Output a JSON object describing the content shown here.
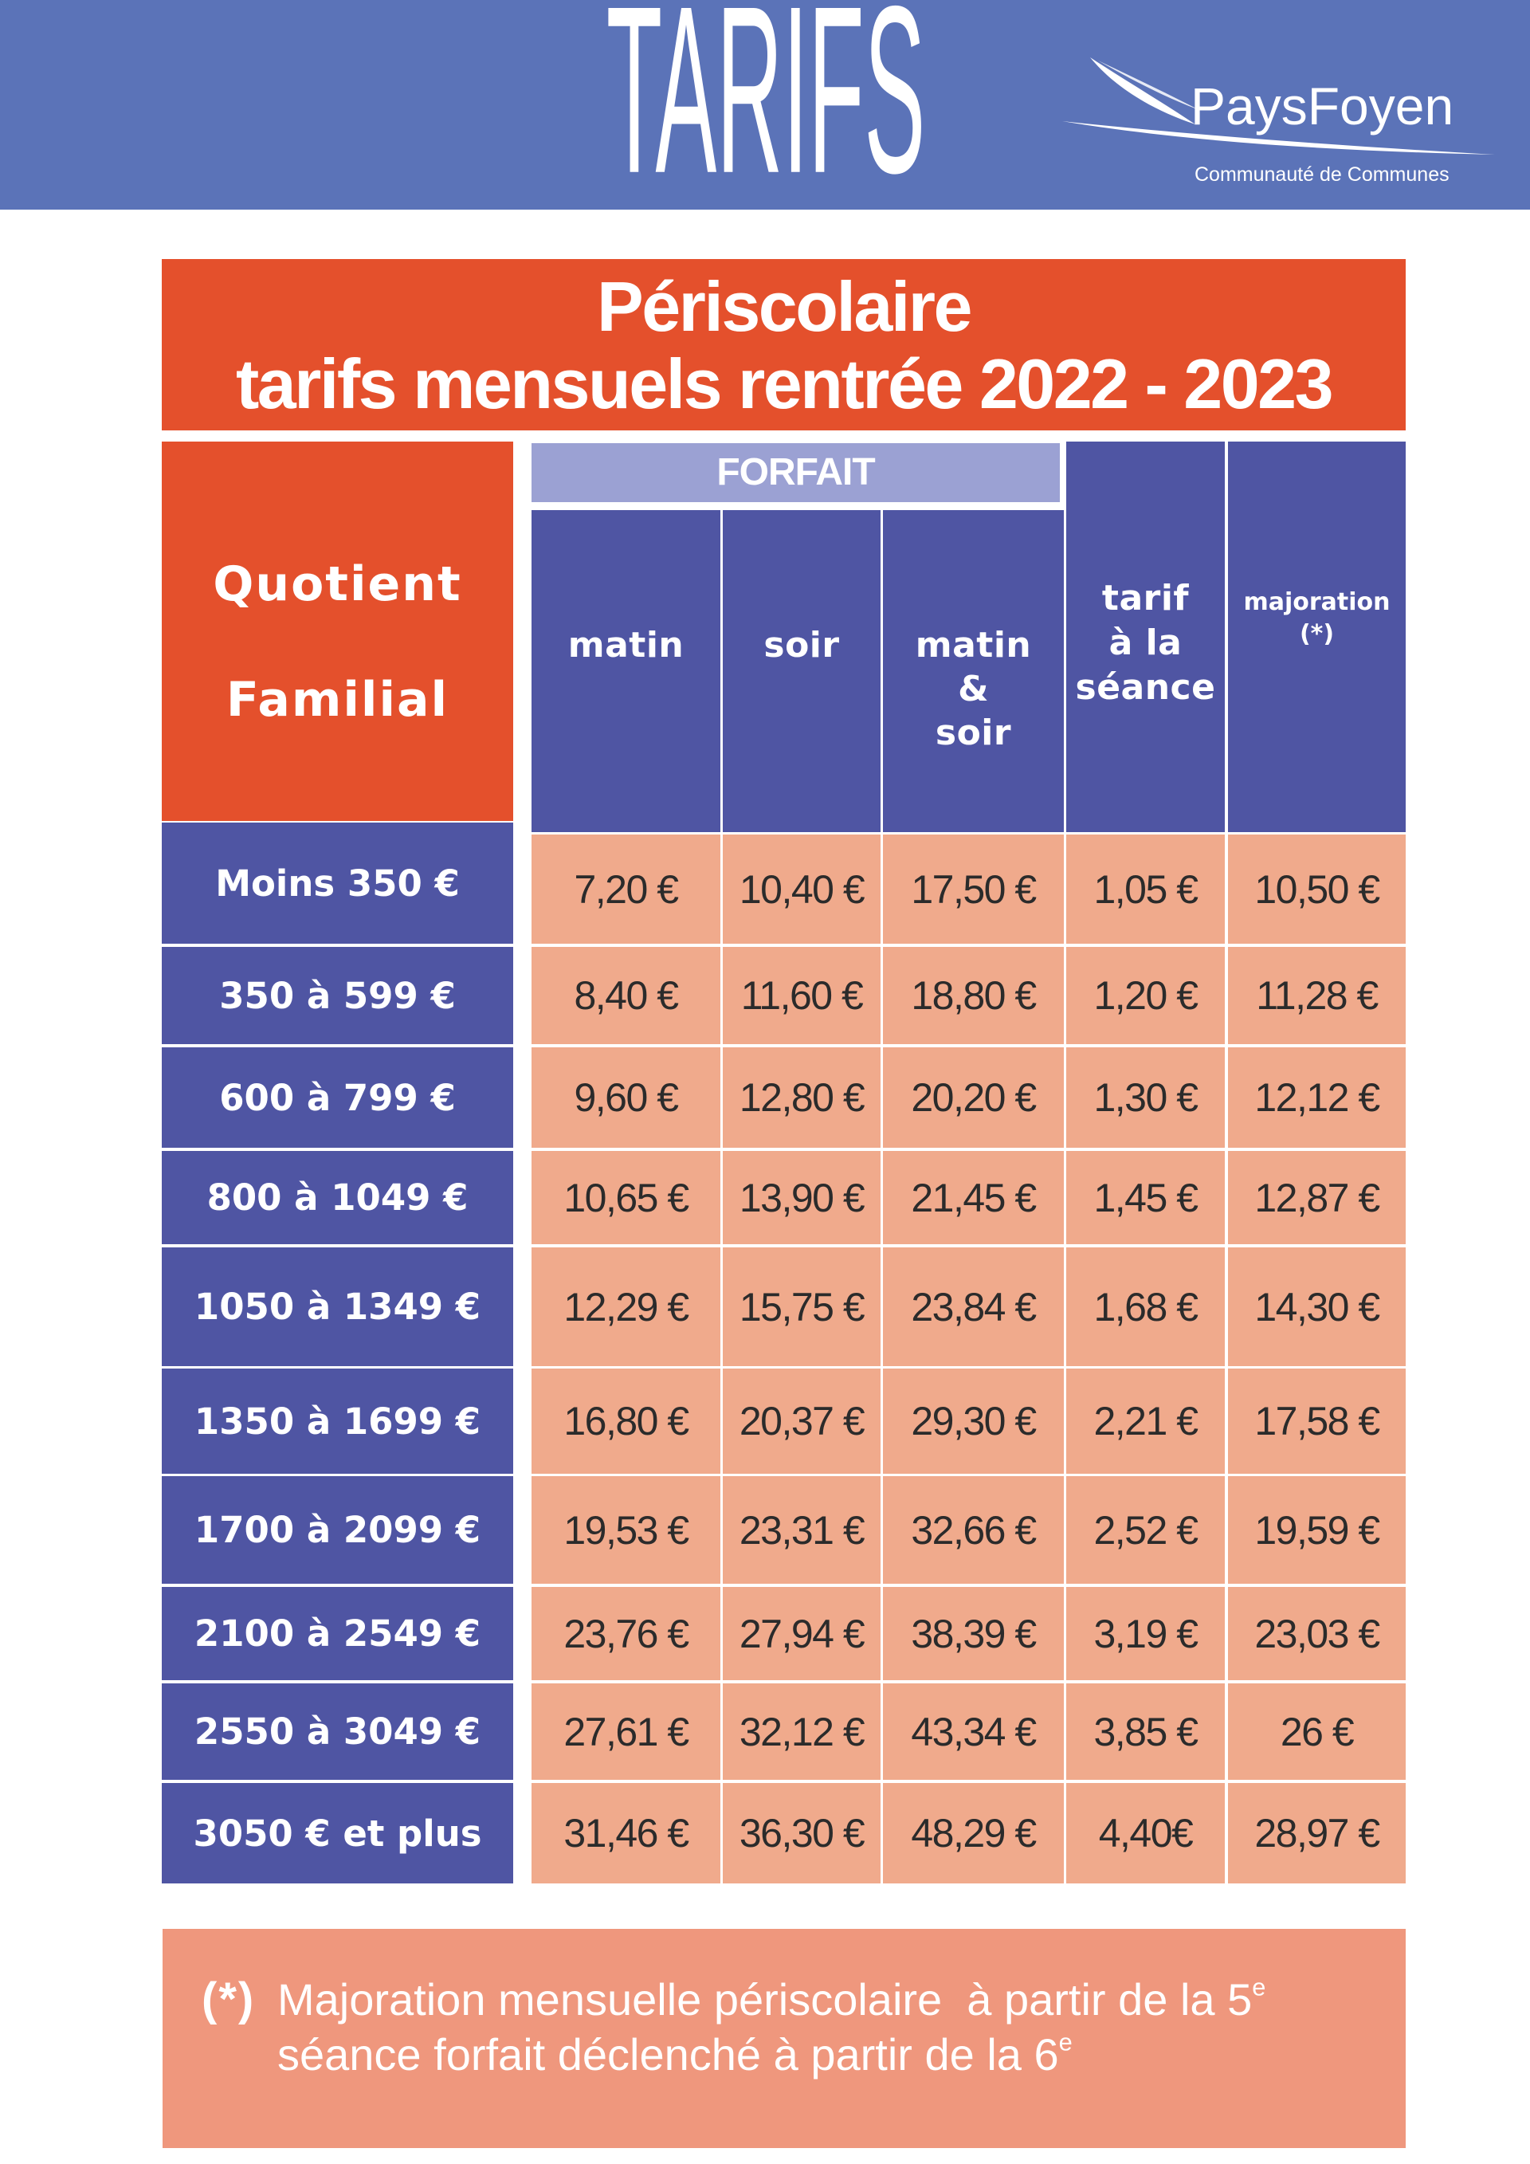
{
  "header": {
    "title": "TARIFS",
    "logo_name": "PaysFoyen",
    "logo_subtitle": "Communauté de Communes"
  },
  "banner": {
    "line1": "Périscolaire",
    "line2": "tarifs mensuels rentrée 2022 - 2023"
  },
  "table": {
    "quotient_header": [
      "Quotient",
      "Familial"
    ],
    "forfait_label": "FORFAIT",
    "col_matin": "matin",
    "col_soir": "soir",
    "col_matin_soir": [
      "matin",
      "&",
      "soir"
    ],
    "col_seance": [
      "tarif",
      "à la",
      "séance"
    ],
    "col_majoration": [
      "majoration",
      "(*)"
    ],
    "rows": [
      {
        "quotient": "Moins 350 €",
        "values": [
          "7,20 €",
          "10,40 €",
          "17,50 €",
          "1,05 €",
          "10,50 €"
        ]
      },
      {
        "quotient": "350 à 599 €",
        "values": [
          "8,40 €",
          "11,60 €",
          "18,80 €",
          "1,20 €",
          "11,28 €"
        ]
      },
      {
        "quotient": "600 à 799 €",
        "values": [
          "9,60 €",
          "12,80 €",
          "20,20 €",
          "1,30 €",
          "12,12 €"
        ]
      },
      {
        "quotient": "800 à 1049 €",
        "values": [
          "10,65 €",
          "13,90 €",
          "21,45 €",
          "1,45 €",
          "12,87 €"
        ]
      },
      {
        "quotient": "1050 à 1349 €",
        "values": [
          "12,29 €",
          "15,75 €",
          "23,84 €",
          "1,68 €",
          "14,30 €"
        ]
      },
      {
        "quotient": "1350 à 1699 €",
        "values": [
          "16,80 €",
          "20,37 €",
          "29,30 €",
          "2,21 €",
          "17,58 €"
        ]
      },
      {
        "quotient": "1700 à 2099 €",
        "values": [
          "19,53 €",
          "23,31 €",
          "32,66 €",
          "2,52 €",
          "19,59 €"
        ]
      },
      {
        "quotient": "2100 à 2549 €",
        "values": [
          "23,76 €",
          "27,94 €",
          "38,39 €",
          "3,19 €",
          "23,03 €"
        ]
      },
      {
        "quotient": "2550 à 3049 €",
        "values": [
          "27,61 €",
          "32,12 €",
          "43,34 €",
          "3,85 €",
          "26 €"
        ]
      },
      {
        "quotient": "3050 € et plus",
        "values": [
          "31,46 €",
          "36,30 €",
          "48,29 €",
          "4,40€",
          "28,97 €"
        ]
      }
    ]
  },
  "footnote": {
    "marker": "(*)",
    "line1": "Majoration mensuelle périscolaire  à partir de la 5",
    "line1_sup": "e",
    "line2": "séance forfait déclenché à partir de la 6",
    "line2_sup": "e"
  },
  "colors": {
    "header_blue": "#5b73b8",
    "banner_orange": "#e4502c",
    "table_blue": "#4f55a3",
    "forfait_lavender": "#9ba1d3",
    "cell_salmon": "#f0aa8c",
    "footnote_salmon": "#ef977d"
  }
}
